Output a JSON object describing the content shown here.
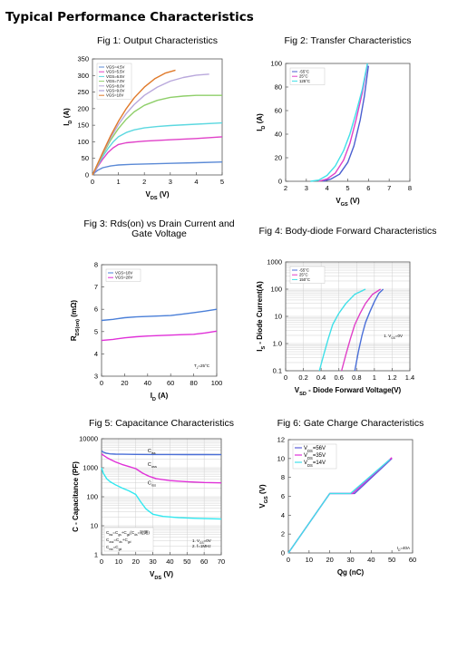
{
  "page": {
    "title": "Typical Performance Characteristics"
  },
  "chart_data": [
    {
      "id": "fig1",
      "type": "line",
      "title": "Fig 1: Output Characteristics",
      "xlabel_main": "V",
      "xlabel_sub": "DS",
      "xlabel_unit": " (V)",
      "ylabel_main": "I",
      "ylabel_sub": "D",
      "ylabel_unit": " (A)",
      "xlim": [
        0,
        5
      ],
      "ylim": [
        0,
        350
      ],
      "xticks": [
        0,
        1,
        2,
        3,
        4,
        5
      ],
      "yticks": [
        0,
        50,
        100,
        150,
        200,
        250,
        300,
        350
      ],
      "grid": false,
      "legend": "top-left",
      "series": [
        {
          "name": "VGS=4.5V",
          "color": "#5b8ad6",
          "x": [
            0,
            0.1,
            0.2,
            0.4,
            0.7,
            1.0,
            1.5,
            2.0,
            3.0,
            4.0,
            5.0
          ],
          "y": [
            0,
            8,
            14,
            22,
            27,
            30,
            32,
            33,
            35,
            37,
            39
          ]
        },
        {
          "name": "VGS=5.5V",
          "color": "#e040c8",
          "x": [
            0,
            0.1,
            0.2,
            0.4,
            0.6,
            0.8,
            1.0,
            1.3,
            1.7,
            2.0,
            3.0,
            4.0,
            5.0
          ],
          "y": [
            0,
            12,
            25,
            48,
            68,
            82,
            92,
            97,
            100,
            102,
            106,
            110,
            115
          ]
        },
        {
          "name": "VGS=6.5V",
          "color": "#5cd8e0",
          "x": [
            0,
            0.2,
            0.4,
            0.6,
            0.8,
            1.0,
            1.3,
            1.6,
            2.0,
            2.5,
            3.0,
            4.0,
            5.0
          ],
          "y": [
            0,
            28,
            56,
            80,
            100,
            115,
            128,
            136,
            142,
            146,
            149,
            153,
            157
          ]
        },
        {
          "name": "VGS=7.0V",
          "color": "#8fcf6a",
          "x": [
            0,
            0.2,
            0.4,
            0.7,
            1.0,
            1.3,
            1.6,
            2.0,
            2.5,
            3.0,
            3.5,
            4.0,
            5.0
          ],
          "y": [
            0,
            30,
            62,
            105,
            140,
            168,
            190,
            210,
            225,
            234,
            238,
            240,
            240
          ]
        },
        {
          "name": "VGS=8.0V",
          "color": "#b9a8dc",
          "x": [
            0,
            0.2,
            0.4,
            0.7,
            1.0,
            1.3,
            1.6,
            2.0,
            2.5,
            3.0,
            3.5,
            4.0,
            4.5
          ],
          "y": [
            0,
            32,
            65,
            112,
            152,
            185,
            212,
            240,
            265,
            283,
            294,
            301,
            304
          ]
        },
        {
          "name": "VGS=9.0V",
          "color": "#9c8ed0",
          "x": [
            0
          ],
          "y": [
            0
          ]
        },
        {
          "name": "VGS=10V",
          "color": "#e07a2a",
          "x": [
            0,
            0.2,
            0.4,
            0.7,
            1.0,
            1.3,
            1.6,
            2.0,
            2.4,
            2.8,
            3.2
          ],
          "y": [
            0,
            34,
            68,
            118,
            162,
            200,
            232,
            265,
            290,
            307,
            316
          ]
        }
      ]
    },
    {
      "id": "fig2",
      "type": "line",
      "title": "Fig 2: Transfer Characteristics",
      "xlabel_main": "V",
      "xlabel_sub": "GS",
      "xlabel_unit": " (V)",
      "ylabel_main": "I",
      "ylabel_sub": "D",
      "ylabel_unit": " (A)",
      "xlim": [
        2,
        8
      ],
      "ylim": [
        0,
        100
      ],
      "xticks": [
        2,
        3,
        4,
        5,
        6,
        7,
        8
      ],
      "yticks": [
        0,
        20,
        40,
        60,
        80,
        100
      ],
      "grid": false,
      "legend": "top-left",
      "series": [
        {
          "name": "-55°C",
          "color": "#4a5fd0",
          "x": [
            3.8,
            4.2,
            4.6,
            5.0,
            5.3,
            5.6,
            5.8,
            6.0
          ],
          "y": [
            0,
            2,
            6,
            16,
            30,
            52,
            72,
            98
          ]
        },
        {
          "name": "25°C",
          "color": "#e040c8",
          "x": [
            3.6,
            4.0,
            4.4,
            4.8,
            5.1,
            5.4,
            5.7,
            5.95
          ],
          "y": [
            0,
            2,
            7,
            18,
            32,
            52,
            75,
            99
          ]
        },
        {
          "name": "125°C",
          "color": "#40e0e8",
          "x": [
            3.2,
            3.6,
            4.0,
            4.4,
            4.8,
            5.1,
            5.4,
            5.7,
            5.95
          ],
          "y": [
            0,
            1,
            5,
            13,
            26,
            40,
            58,
            78,
            100
          ]
        }
      ]
    },
    {
      "id": "fig3",
      "type": "line",
      "title": "Fig 3: Rds(on) vs Drain Current and Gate Voltage",
      "title_lines": [
        "Fig 3: Rds(on) vs Drain Current and",
        "Gate Voltage"
      ],
      "xlabel_main": "I",
      "xlabel_sub": "D",
      "xlabel_unit": " (A)",
      "ylabel_main": "R",
      "ylabel_sub": "DS(on)",
      "ylabel_unit": " (mΩ)",
      "xlim": [
        0,
        100
      ],
      "ylim": [
        3,
        8
      ],
      "xticks": [
        0,
        20,
        40,
        60,
        80,
        100
      ],
      "yticks": [
        3,
        4,
        5,
        6,
        7,
        8
      ],
      "grid": false,
      "legend": "top-left",
      "note_main": "T",
      "note_sub": "J",
      "note_rest": "=25°C",
      "series": [
        {
          "name": "VGS=10V",
          "color": "#4a7fd8",
          "x": [
            0,
            10,
            20,
            30,
            40,
            50,
            60,
            70,
            80,
            90,
            100
          ],
          "y": [
            5.5,
            5.55,
            5.62,
            5.66,
            5.68,
            5.7,
            5.72,
            5.78,
            5.85,
            5.92,
            6.0
          ]
        },
        {
          "name": "VGS=20V",
          "color": "#e030d8",
          "x": [
            0,
            10,
            20,
            30,
            40,
            50,
            60,
            70,
            80,
            90,
            100
          ],
          "y": [
            4.6,
            4.65,
            4.72,
            4.77,
            4.8,
            4.82,
            4.84,
            4.86,
            4.88,
            4.94,
            5.02
          ]
        }
      ]
    },
    {
      "id": "fig4",
      "type": "line",
      "title": "Fig 4: Body-diode Forward  Characteristics",
      "xlabel_main": "V",
      "xlabel_sub": "SD",
      "xlabel_unit": " - Diode Forward Voltage(V)",
      "ylabel_main": "I",
      "ylabel_sub": "S",
      "ylabel_unit": " - Diode Current(A)",
      "xlim": [
        0,
        1.4
      ],
      "ylim_log": [
        0.1,
        1000
      ],
      "xticks": [
        "0",
        "0.2",
        "0.4",
        "0.6",
        "0.8",
        "1",
        "1.2",
        "1.4"
      ],
      "yticks": [
        "0.1",
        "1.0",
        "10",
        "100",
        "1000"
      ],
      "grid": true,
      "legend": "top-left",
      "note_main": "1. V",
      "note_sub": "GS",
      "note_rest": "=0V",
      "series": [
        {
          "name": "-55°C",
          "color": "#4a6fd8",
          "x": [
            0.78,
            0.82,
            0.86,
            0.9,
            0.95,
            1.0,
            1.05,
            1.1
          ],
          "y": [
            0.1,
            0.5,
            2,
            6,
            15,
            35,
            70,
            100
          ]
        },
        {
          "name": "25°C",
          "color": "#e040c8",
          "x": [
            0.63,
            0.68,
            0.73,
            0.78,
            0.84,
            0.9,
            0.98,
            1.07
          ],
          "y": [
            0.1,
            0.4,
            1.5,
            5,
            13,
            30,
            65,
            100
          ]
        },
        {
          "name": "150°C",
          "color": "#40e0e8",
          "x": [
            0.38,
            0.43,
            0.48,
            0.53,
            0.6,
            0.68,
            0.78,
            0.9
          ],
          "y": [
            0.1,
            0.4,
            1.5,
            5,
            13,
            30,
            65,
            100
          ]
        }
      ]
    },
    {
      "id": "fig5",
      "type": "line",
      "title": "Fig 5:  Capacitance Characteristics",
      "xlabel_main": "V",
      "xlabel_sub": "DS",
      "xlabel_unit": " (V)",
      "ylabel_main": "C - Capacitance (PF)",
      "ylabel_sub": "",
      "ylabel_unit": "",
      "xlim": [
        0,
        70
      ],
      "ylim_log": [
        1,
        10000
      ],
      "xticks": [
        0,
        10,
        20,
        30,
        40,
        50,
        60,
        70
      ],
      "yticks": [
        "1",
        "10",
        "100",
        "1000",
        "10000"
      ],
      "grid": true,
      "legend": "none",
      "curve_labels": [
        {
          "main": "C",
          "sub": "iss",
          "series": 0,
          "x": 27,
          "y": 3400
        },
        {
          "main": "C",
          "sub": "oss",
          "series": 1,
          "x": 27,
          "y": 1150
        },
        {
          "main": "C",
          "sub": "rss",
          "series": 2,
          "x": 27,
          "y": 260
        }
      ],
      "formula_lines": [
        {
          "parts": [
            [
              "C",
              "iss"
            ],
            [
              "=C",
              "gs"
            ],
            [
              "+C",
              "gd"
            ],
            [
              "(C",
              "ds"
            ],
            [
              "=短路)",
              ""
            ]
          ]
        },
        {
          "parts": [
            [
              "C",
              "oss"
            ],
            [
              "=C",
              "ds"
            ],
            [
              "+C",
              "gd"
            ]
          ]
        },
        {
          "parts": [
            [
              "C",
              "rss"
            ],
            [
              "=C",
              "gd"
            ]
          ]
        }
      ],
      "notes": [
        {
          "parts": [
            [
              "1. V",
              "GS"
            ],
            [
              "=0V",
              ""
            ]
          ]
        },
        {
          "parts": [
            [
              "2. f=1MHz",
              ""
            ]
          ]
        }
      ],
      "series": [
        {
          "name": "Ciss",
          "color": "#4a6fd8",
          "x": [
            0,
            1,
            3,
            5,
            8,
            12,
            20,
            30,
            40,
            50,
            60,
            70
          ],
          "y": [
            3800,
            3450,
            3150,
            3000,
            2950,
            2920,
            2880,
            2850,
            2850,
            2840,
            2830,
            2820
          ]
        },
        {
          "name": "Coss",
          "color": "#e030d8",
          "x": [
            0,
            1,
            3,
            5,
            8,
            12,
            16,
            20,
            24,
            28,
            32,
            40,
            50,
            60,
            70
          ],
          "y": [
            3000,
            2700,
            2250,
            1950,
            1600,
            1300,
            1100,
            930,
            650,
            500,
            420,
            360,
            330,
            310,
            300
          ]
        },
        {
          "name": "Crss",
          "color": "#30e8f0",
          "x": [
            0,
            1,
            3,
            5,
            8,
            12,
            16,
            20,
            23,
            26,
            30,
            36,
            45,
            55,
            70
          ],
          "y": [
            1000,
            650,
            420,
            330,
            260,
            200,
            160,
            120,
            65,
            38,
            25,
            21,
            19,
            18,
            17
          ]
        }
      ]
    },
    {
      "id": "fig6",
      "type": "line",
      "title": "Fig 6:  Gate Charge Characteristics",
      "xlabel_main": "Qg (nC)",
      "xlabel_sub": "",
      "xlabel_unit": "",
      "ylabel_main": "V",
      "ylabel_sub": "GS",
      "ylabel_unit": " (V)",
      "xlim": [
        0,
        60
      ],
      "ylim": [
        0,
        12
      ],
      "xticks": [
        0,
        10,
        20,
        30,
        40,
        50,
        60
      ],
      "yticks": [
        0,
        2,
        4,
        6,
        8,
        10,
        12
      ],
      "grid": false,
      "legend": "top-left",
      "note_main": "I",
      "note_sub": "D",
      "note_rest": "=40A",
      "series": [
        {
          "name": "V_DS=56V",
          "label_main": "V",
          "label_sub": "DS",
          "label_rest": "=56V",
          "color": "#5b5fd8",
          "x": [
            0,
            20,
            32,
            50
          ],
          "y": [
            0,
            6.3,
            6.3,
            10
          ]
        },
        {
          "name": "V_DS=35V",
          "label_main": "V",
          "label_sub": "DS",
          "label_rest": "=35V",
          "color": "#e030d8",
          "x": [
            0,
            20,
            31,
            50
          ],
          "y": [
            0,
            6.3,
            6.3,
            10.1
          ]
        },
        {
          "name": "V_DS=14V",
          "label_main": "V",
          "label_sub": "DS",
          "label_rest": "=14V",
          "color": "#40e0e8",
          "x": [
            0,
            20,
            30,
            49
          ],
          "y": [
            0,
            6.3,
            6.3,
            9.9
          ]
        }
      ]
    }
  ]
}
